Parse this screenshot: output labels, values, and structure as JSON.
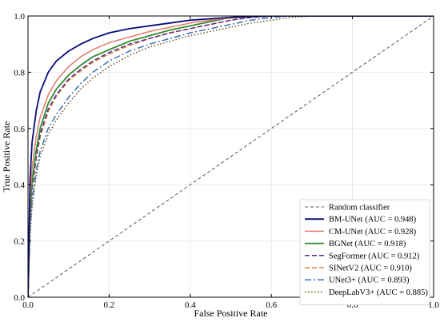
{
  "chart_data": {
    "type": "line",
    "title": "",
    "xlabel": "False Positive Rate",
    "ylabel": "True Positive Rate",
    "xlim": [
      0,
      1
    ],
    "ylim": [
      0,
      1
    ],
    "xticks": [
      "0.0",
      "0.2",
      "0.4",
      "0.6",
      "0.8",
      "1.0"
    ],
    "yticks": [
      "0.0",
      "0.2",
      "0.4",
      "0.6",
      "0.8",
      "1.0"
    ],
    "grid": true,
    "legend_position": "bottom-right",
    "series": [
      {
        "name": "Random classifier",
        "color": "#555555",
        "dash": "4,3",
        "width": 1,
        "x": [
          0,
          1
        ],
        "y": [
          0,
          1
        ]
      },
      {
        "name": "BM-UNet (AUC = 0.948)",
        "color": "#0b0b7a",
        "dash": "",
        "width": 1.8,
        "x": [
          0,
          0.005,
          0.01,
          0.02,
          0.03,
          0.05,
          0.07,
          0.1,
          0.13,
          0.16,
          0.2,
          0.25,
          0.3,
          0.35,
          0.4,
          0.45,
          0.5,
          0.55,
          0.6,
          0.65,
          1
        ],
        "y": [
          0,
          0.42,
          0.55,
          0.66,
          0.73,
          0.8,
          0.84,
          0.875,
          0.9,
          0.92,
          0.94,
          0.955,
          0.965,
          0.975,
          0.985,
          0.99,
          0.995,
          0.998,
          1,
          1,
          1
        ]
      },
      {
        "name": "CM-UNet (AUC = 0.928)",
        "color": "#e07a6a",
        "dash": "",
        "width": 1.5,
        "x": [
          0,
          0.005,
          0.01,
          0.02,
          0.03,
          0.05,
          0.07,
          0.1,
          0.13,
          0.16,
          0.2,
          0.25,
          0.3,
          0.35,
          0.4,
          0.45,
          0.5,
          0.55,
          0.6,
          0.65,
          1
        ],
        "y": [
          0,
          0.34,
          0.46,
          0.57,
          0.64,
          0.72,
          0.77,
          0.82,
          0.855,
          0.88,
          0.905,
          0.925,
          0.945,
          0.96,
          0.975,
          0.985,
          0.993,
          0.998,
          1,
          1,
          1
        ]
      },
      {
        "name": "BGNet (AUC = 0.918)",
        "color": "#2e8b2e",
        "dash": "",
        "width": 1.8,
        "x": [
          0,
          0.005,
          0.01,
          0.02,
          0.03,
          0.05,
          0.07,
          0.1,
          0.13,
          0.16,
          0.2,
          0.25,
          0.3,
          0.35,
          0.4,
          0.45,
          0.5,
          0.55,
          0.6,
          0.65,
          1
        ],
        "y": [
          0,
          0.3,
          0.41,
          0.52,
          0.6,
          0.69,
          0.74,
          0.79,
          0.825,
          0.855,
          0.88,
          0.91,
          0.93,
          0.95,
          0.965,
          0.98,
          0.995,
          1,
          1,
          1,
          1
        ]
      },
      {
        "name": "SegFormer (AUC = 0.912)",
        "color": "#5a2a8a",
        "dash": "6,3",
        "width": 1.5,
        "x": [
          0,
          0.005,
          0.01,
          0.02,
          0.03,
          0.05,
          0.07,
          0.1,
          0.13,
          0.16,
          0.2,
          0.25,
          0.3,
          0.35,
          0.4,
          0.45,
          0.5,
          0.55,
          0.6,
          0.65,
          1
        ],
        "y": [
          0,
          0.28,
          0.39,
          0.5,
          0.58,
          0.67,
          0.72,
          0.775,
          0.81,
          0.84,
          0.87,
          0.9,
          0.92,
          0.94,
          0.955,
          0.97,
          0.985,
          0.995,
          1,
          1,
          1
        ]
      },
      {
        "name": "SINetV2 (AUC = 0.910)",
        "color": "#d8843a",
        "dash": "6,3",
        "width": 1.5,
        "x": [
          0,
          0.005,
          0.01,
          0.02,
          0.03,
          0.05,
          0.07,
          0.1,
          0.13,
          0.16,
          0.2,
          0.25,
          0.3,
          0.35,
          0.4,
          0.45,
          0.5,
          0.55,
          0.6,
          0.65,
          1
        ],
        "y": [
          0,
          0.27,
          0.38,
          0.49,
          0.57,
          0.66,
          0.715,
          0.77,
          0.805,
          0.835,
          0.865,
          0.895,
          0.92,
          0.94,
          0.955,
          0.97,
          0.985,
          0.995,
          1,
          1,
          1
        ]
      },
      {
        "name": "UNet3+ (AUC = 0.893)",
        "color": "#3a6fb0",
        "dash": "8,3,2,3",
        "width": 1.5,
        "x": [
          0,
          0.005,
          0.01,
          0.02,
          0.03,
          0.05,
          0.07,
          0.1,
          0.13,
          0.16,
          0.2,
          0.25,
          0.3,
          0.35,
          0.4,
          0.45,
          0.5,
          0.55,
          0.6,
          0.65,
          1
        ],
        "y": [
          0,
          0.24,
          0.34,
          0.45,
          0.52,
          0.6,
          0.65,
          0.71,
          0.76,
          0.8,
          0.84,
          0.875,
          0.9,
          0.92,
          0.94,
          0.955,
          0.97,
          0.985,
          0.995,
          1,
          1
        ]
      },
      {
        "name": "DeepLabV3+ (AUC = 0.885)",
        "color": "#6b5a2a",
        "dash": "1.5,2.5",
        "width": 1.6,
        "x": [
          0,
          0.005,
          0.01,
          0.02,
          0.03,
          0.05,
          0.07,
          0.1,
          0.13,
          0.16,
          0.2,
          0.25,
          0.3,
          0.35,
          0.4,
          0.45,
          0.5,
          0.55,
          0.6,
          0.65,
          0.7,
          1
        ],
        "y": [
          0,
          0.22,
          0.32,
          0.43,
          0.5,
          0.58,
          0.63,
          0.69,
          0.74,
          0.78,
          0.82,
          0.86,
          0.89,
          0.91,
          0.93,
          0.945,
          0.96,
          0.975,
          0.985,
          0.995,
          1,
          1
        ]
      }
    ]
  }
}
